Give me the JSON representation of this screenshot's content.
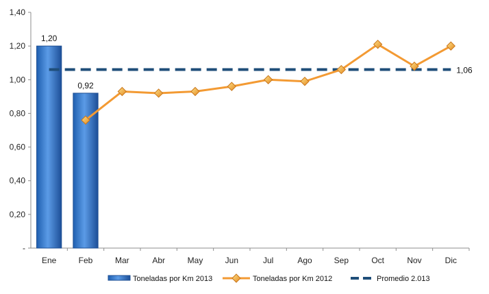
{
  "chart_data": {
    "type": "bar+line",
    "categories": [
      "Ene",
      "Feb",
      "Mar",
      "Abr",
      "May",
      "Jun",
      "Jul",
      "Ago",
      "Sep",
      "Oct",
      "Nov",
      "Dic"
    ],
    "series": [
      {
        "name": "Toneladas por Km 2013",
        "type": "bar",
        "values": [
          1.2,
          0.92,
          null,
          null,
          null,
          null,
          null,
          null,
          null,
          null,
          null,
          null
        ],
        "labels": [
          "1,20",
          "0,92"
        ]
      },
      {
        "name": "Toneladas por Km 2012",
        "type": "line",
        "marker": "diamond",
        "values": [
          null,
          0.76,
          0.93,
          0.92,
          0.93,
          0.96,
          1.0,
          0.99,
          1.06,
          1.21,
          1.08,
          1.2
        ]
      },
      {
        "name": "Promedio 2.013",
        "type": "line",
        "style": "dashed",
        "value": 1.06,
        "label": "1,06"
      }
    ],
    "ylim": [
      0,
      1.4
    ],
    "yticks": [
      "-",
      "0,20",
      "0,40",
      "0,60",
      "0,80",
      "1,00",
      "1,20",
      "1,40"
    ],
    "legend_position": "bottom",
    "grid": false,
    "colors": {
      "bar": "#3a7bd5",
      "bar_dark": "#1f4f93",
      "line2012": "#f39a33",
      "marker2012": "#f6b23c",
      "average": "#1f4e79",
      "axis": "#8c8c8c"
    }
  }
}
